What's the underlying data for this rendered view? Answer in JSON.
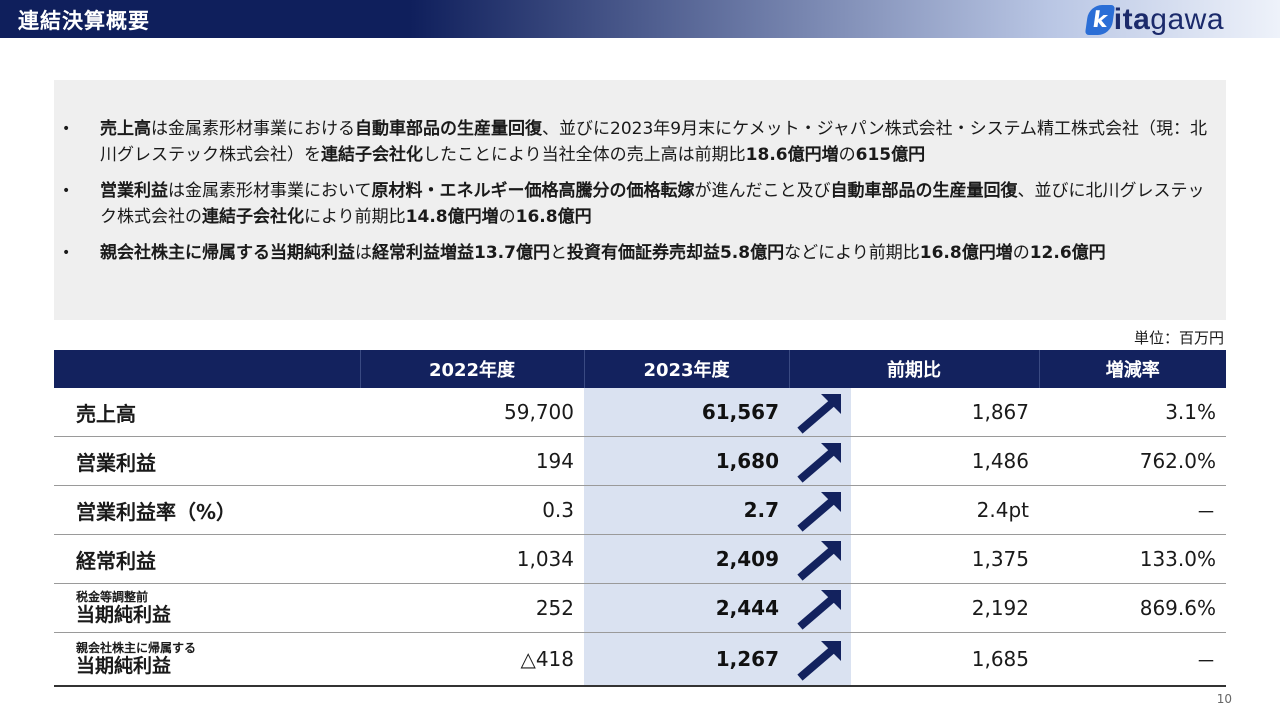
{
  "header": {
    "title": "連結決算概要",
    "logo_k": "k",
    "logo_ita": "ita",
    "logo_gawa": "gawa"
  },
  "summary": {
    "bullet_symbol": "•",
    "bullets": [
      {
        "parts": [
          {
            "text": "売上高",
            "bold": true
          },
          {
            "text": "は金属素形材事業における",
            "bold": false
          },
          {
            "text": "自動車部品の生産量回復",
            "bold": true
          },
          {
            "text": "、並びに2023年9月末にケメット・ジャパン株式会社・システム精工株式会社（現：北川グレステック株式会社）を",
            "bold": false
          },
          {
            "text": "連結子会社化",
            "bold": true
          },
          {
            "text": "したことにより当社全体の売上高は前期比",
            "bold": false
          },
          {
            "text": "18.6億円増",
            "bold": true
          },
          {
            "text": "の",
            "bold": false
          },
          {
            "text": "615億円",
            "bold": true
          }
        ]
      },
      {
        "parts": [
          {
            "text": "営業利益",
            "bold": true
          },
          {
            "text": "は金属素形材事業において",
            "bold": false
          },
          {
            "text": "原材料・エネルギー価格高騰分の価格転嫁",
            "bold": true
          },
          {
            "text": "が進んだこと及び",
            "bold": false
          },
          {
            "text": "自動車部品の生産量回復",
            "bold": true
          },
          {
            "text": "、並びに北川グレステック株式会社の",
            "bold": false
          },
          {
            "text": "連結子会社化",
            "bold": true
          },
          {
            "text": "により前期比",
            "bold": false
          },
          {
            "text": "14.8億円増",
            "bold": true
          },
          {
            "text": "の",
            "bold": false
          },
          {
            "text": "16.8億円",
            "bold": true
          }
        ]
      },
      {
        "parts": [
          {
            "text": "親会社株主に帰属する当期純利益",
            "bold": true
          },
          {
            "text": "は",
            "bold": false
          },
          {
            "text": "経常利益増益13.7億円",
            "bold": true
          },
          {
            "text": "と",
            "bold": false
          },
          {
            "text": "投資有価証券売却益5.8億円",
            "bold": true
          },
          {
            "text": "などにより前期比",
            "bold": false
          },
          {
            "text": "16.8億円増",
            "bold": true
          },
          {
            "text": "の",
            "bold": false
          },
          {
            "text": "12.6億円",
            "bold": true
          }
        ]
      }
    ]
  },
  "unit": "単位：百万円",
  "table": {
    "headers": {
      "label": "",
      "fy2022": "2022年度",
      "fy2023": "2023年度",
      "change": "前期比",
      "rate": "増減率"
    },
    "rows": [
      {
        "label_small": "",
        "label": "売上高",
        "fy2022": "59,700",
        "fy2023": "61,567",
        "arrow": "up-arrow-icon",
        "change": "1,867",
        "rate": "3.1%"
      },
      {
        "label_small": "",
        "label": "営業利益",
        "fy2022": "194",
        "fy2023": "1,680",
        "arrow": "up-arrow-icon",
        "change": "1,486",
        "rate": "762.0%"
      },
      {
        "label_small": "",
        "label": "営業利益率（%）",
        "fy2022": "0.3",
        "fy2023": "2.7",
        "arrow": "up-arrow-icon",
        "change": "2.4pt",
        "rate": "－"
      },
      {
        "label_small": "",
        "label": "経常利益",
        "fy2022": "1,034",
        "fy2023": "2,409",
        "arrow": "up-arrow-icon",
        "change": "1,375",
        "rate": "133.0%"
      },
      {
        "label_small": "税金等調整前",
        "label": "当期純利益",
        "fy2022": "252",
        "fy2023": "2,444",
        "arrow": "up-arrow-icon",
        "change": "2,192",
        "rate": "869.6%"
      },
      {
        "label_small": "親会社株主に帰属する",
        "label": "当期純利益",
        "fy2022": "△418",
        "fy2023": "1,267",
        "arrow": "up-arrow-icon",
        "change": "1,685",
        "rate": "－"
      }
    ]
  },
  "page_number": "10",
  "colors": {
    "header_navy": "#13225e",
    "highlight_column": "#dae2f1",
    "arrow": "#13225e",
    "summary_bg": "#efefef"
  }
}
